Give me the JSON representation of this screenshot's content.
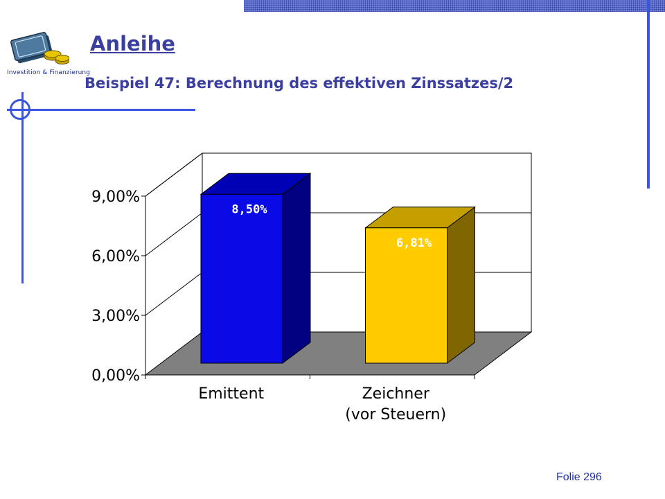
{
  "header": {
    "title": "Anleihe",
    "subtitle": "Beispiel 47: Berechnung des effektiven Zinssatzes/2",
    "brand_caption": "Investition & Finanzierung",
    "logo_icon": "money-stack-icon"
  },
  "footer": {
    "slide_label": "Folie 296"
  },
  "colors": {
    "accent_blue": "#3a55e0",
    "title_color": "#3a3fa0",
    "floor_gray": "#808080"
  },
  "chart_data": {
    "type": "bar",
    "title": "",
    "xlabel": "",
    "ylabel": "",
    "ylim": [
      0,
      9
    ],
    "yticks": [
      0,
      3,
      6,
      9
    ],
    "ytick_labels": [
      "0,00%",
      "3,00%",
      "6,00%",
      "9,00%"
    ],
    "grid": true,
    "legend": "none",
    "categories": [
      {
        "lines": [
          "Emittent"
        ]
      },
      {
        "lines": [
          "Zeichner",
          "(vor Steuern)"
        ]
      }
    ],
    "values": [
      8.5,
      6.81
    ],
    "data_labels": [
      "8,50%",
      "6,81%"
    ],
    "bar_colors": [
      {
        "front": "#0a0ae6",
        "top": "#0000b4",
        "side": "#000080"
      },
      {
        "front": "#ffcc00",
        "top": "#c59e00",
        "side": "#7f6600"
      }
    ]
  }
}
